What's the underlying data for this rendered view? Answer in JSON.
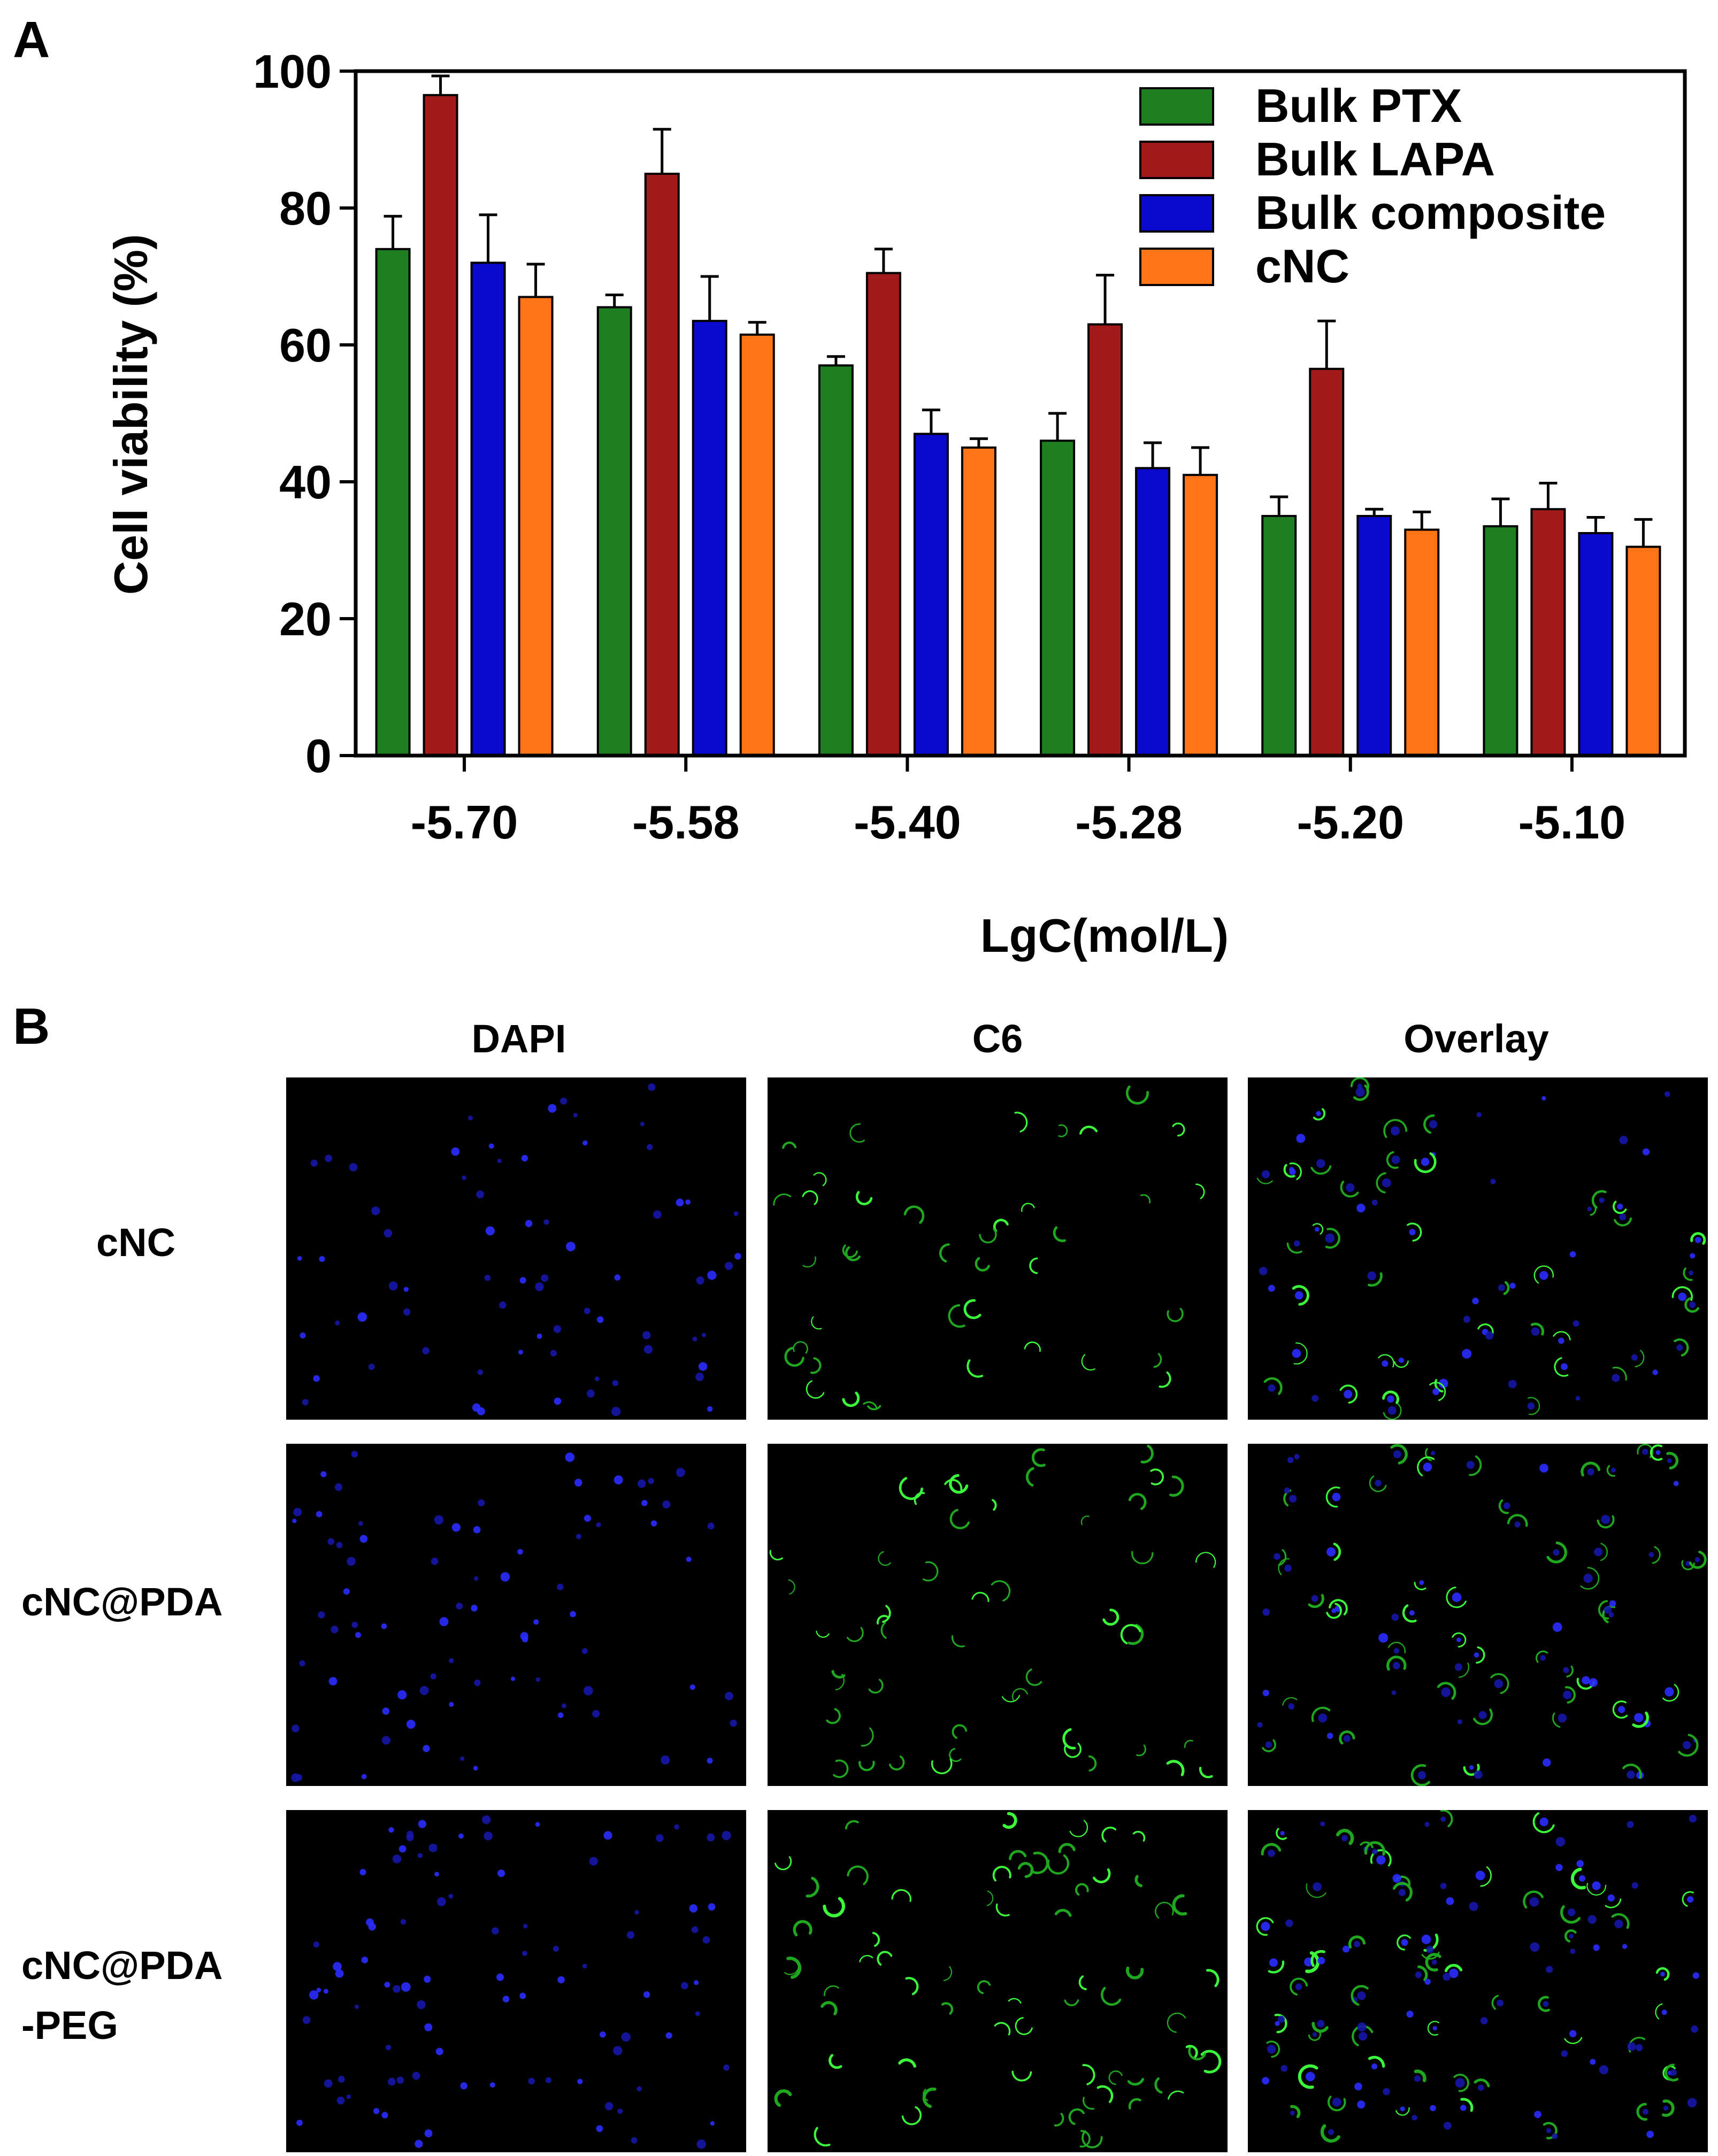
{
  "panels": {
    "a_label": "A",
    "b_label": "B"
  },
  "chart_data": {
    "type": "bar",
    "categories": [
      "-5.70",
      "-5.58",
      "-5.40",
      "-5.28",
      "-5.20",
      "-5.10"
    ],
    "series": [
      {
        "name": "Bulk PTX",
        "color": "#1d7f20",
        "values": [
          74,
          65.5,
          57,
          46,
          35,
          33.5
        ],
        "errors": [
          4.8,
          1.8,
          1.3,
          4,
          2.8,
          4
        ]
      },
      {
        "name": "Bulk LAPA",
        "color": "#a21a1a",
        "values": [
          96.5,
          85,
          70.5,
          63,
          56.5,
          36
        ],
        "errors": [
          2.8,
          6.5,
          3.5,
          7.2,
          7,
          3.8
        ]
      },
      {
        "name": "Bulk composite",
        "color": "#0a0acf",
        "values": [
          72,
          63.5,
          47,
          42,
          35,
          32.5
        ],
        "errors": [
          7,
          6.5,
          3.5,
          3.7,
          1,
          2.3
        ]
      },
      {
        "name": "cNC",
        "color": "#ff7417",
        "values": [
          67,
          61.5,
          45,
          41,
          33,
          30.5
        ],
        "errors": [
          4.8,
          1.8,
          1.3,
          4,
          2.6,
          4
        ]
      }
    ],
    "xlabel": "LgC(mol/L)",
    "ylabel": "Cell viability (%)",
    "ylim": [
      0,
      100
    ],
    "yticks": [
      "0",
      "20",
      "40",
      "60",
      "80",
      "100"
    ],
    "grid": false,
    "legend": "top-right"
  },
  "microscopy": {
    "columns": [
      "DAPI",
      "C6",
      "Overlay"
    ],
    "rows": [
      "cNC",
      "cNC@PDA",
      "cNC@PDA\n-PEG"
    ]
  }
}
